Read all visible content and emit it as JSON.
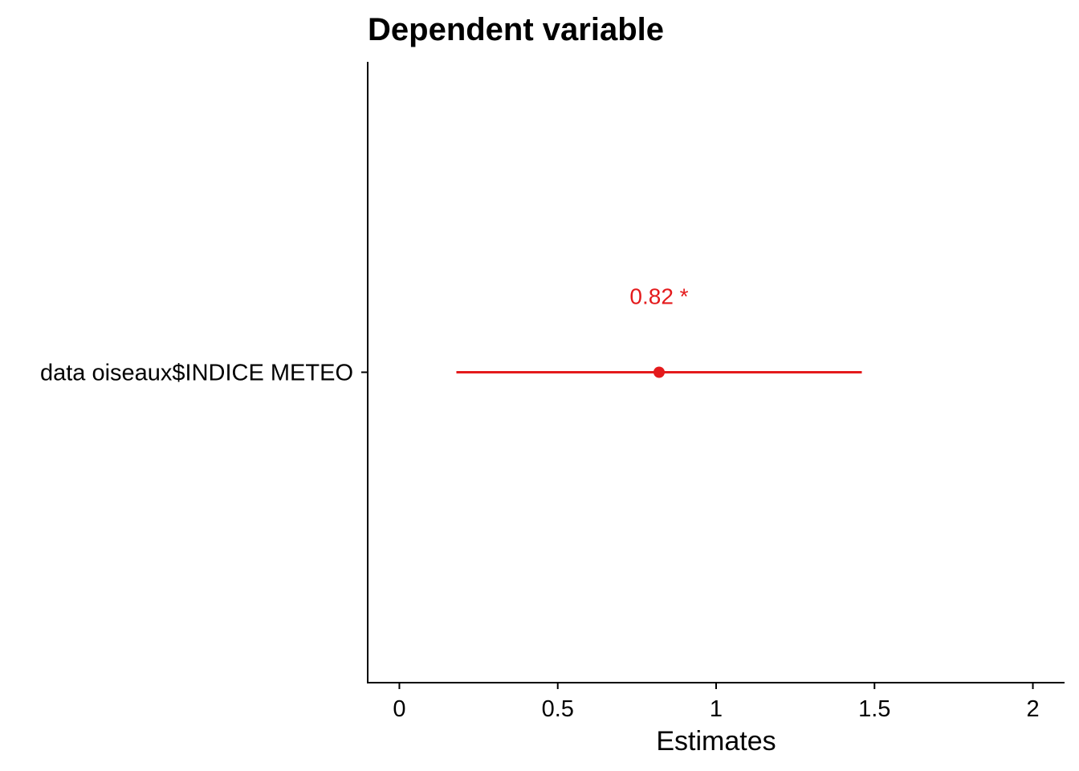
{
  "chart_data": {
    "type": "scatter",
    "title": "Dependent variable",
    "xlabel": "Estimates",
    "ylabel": "",
    "xlim": [
      -0.1,
      2.1
    ],
    "x_ticks": [
      0,
      0.5,
      1,
      1.5,
      2
    ],
    "x_tick_labels": [
      "0",
      "0.5",
      "1",
      "1.5",
      "2"
    ],
    "categories": [
      "data oiseaux$INDICE METEO"
    ],
    "series": [
      {
        "estimates": [
          0.82
        ],
        "ci_low": [
          0.18
        ],
        "ci_high": [
          1.46
        ],
        "labels": [
          "0.82 *"
        ],
        "color": "#e41a1c"
      }
    ],
    "grid": false,
    "legend": "none"
  }
}
